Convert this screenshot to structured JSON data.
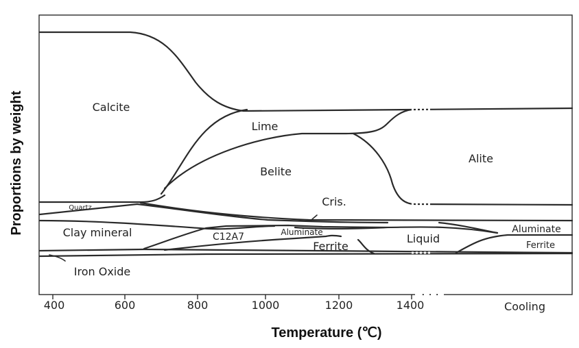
{
  "diagram": {
    "y_axis_label": "Proportions by weight",
    "x_axis_label": "Temperature (℃)",
    "x_ticks": [
      "400",
      "600",
      "800",
      "1000",
      "1200",
      "1400"
    ],
    "cooling_label": "Cooling",
    "ellipsis": ". . .",
    "regions": {
      "calcite": "Calcite",
      "lime": "Lime",
      "belite": "Belite",
      "alite": "Alite",
      "quartz": "Quartz",
      "cris": "Cris.",
      "clay_mineral": "Clay mineral",
      "c12a7": "C12A7",
      "aluminate_mid": "Aluminate",
      "ferrite_mid": "Ferrite",
      "liquid": "Liquid",
      "aluminate_right": "Aluminate",
      "ferrite_right": "Ferrite",
      "iron_oxide": "Iron Oxide"
    }
  }
}
